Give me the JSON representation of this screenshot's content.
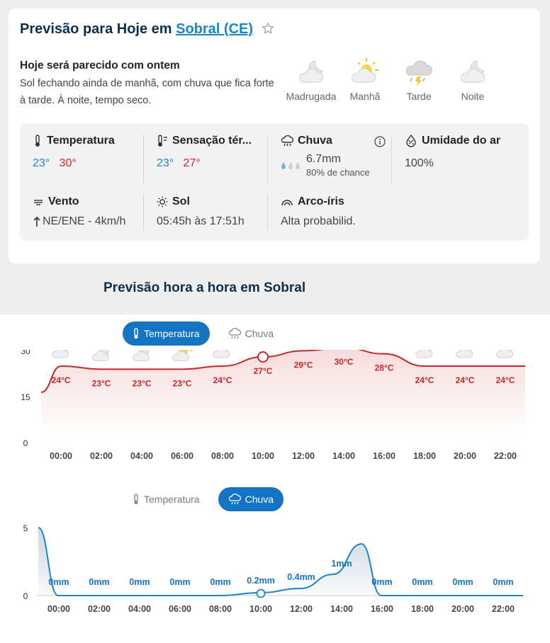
{
  "header": {
    "title_prefix": "Previsão para Hoje em",
    "city_link": "Sobral (CE)"
  },
  "summary": {
    "heading": "Hoje será parecido com ontem",
    "text": "Sol fechando ainda de manhã, com chuva que fica forte à tarde. À noite, tempo seco."
  },
  "periods": [
    {
      "label": "Madrugada",
      "icon": "moon-cloud-icon"
    },
    {
      "label": "Manhã",
      "icon": "sun-cloud-icon"
    },
    {
      "label": "Tarde",
      "icon": "storm-cloud-icon"
    },
    {
      "label": "Noite",
      "icon": "moon-cloud-icon"
    }
  ],
  "stats": {
    "temperature": {
      "label": "Temperatura",
      "min": "23°",
      "max": "30°"
    },
    "feels_like": {
      "label": "Sensação tér...",
      "min": "23°",
      "max": "27°"
    },
    "rain": {
      "label": "Chuva",
      "amount": "6.7mm",
      "chance": "80% de chance"
    },
    "humidity": {
      "label": "Umidade do ar",
      "value": "100%"
    },
    "wind": {
      "label": "Vento",
      "value": "NE/ENE - 4km/h"
    },
    "sun": {
      "label": "Sol",
      "value": "05:45h às 17:51h"
    },
    "rainbow": {
      "label": "Arco-íris",
      "value": "Alta probabilid."
    }
  },
  "hourly": {
    "title": "Previsão hora a hora em Sobral",
    "tab_temperature": "Temperatura",
    "tab_rain": "Chuva"
  },
  "colors": {
    "accent": "#1573c3",
    "temp_line": "#c62828",
    "rain_line": "#1a86c8",
    "title": "#0c2f4f"
  },
  "chart_data": [
    {
      "type": "line",
      "title": "",
      "x": [
        "00:00",
        "02:00",
        "04:00",
        "06:00",
        "08:00",
        "10:00",
        "12:00",
        "14:00",
        "16:00",
        "18:00",
        "20:00",
        "22:00"
      ],
      "values": [
        24,
        23,
        23,
        23,
        24,
        27,
        29,
        30,
        28,
        24,
        24,
        24
      ],
      "labels": [
        "24°C",
        "23°C",
        "23°C",
        "23°C",
        "24°C",
        "27°C",
        "29°C",
        "30°C",
        "28°C",
        "24°C",
        "24°C",
        "24°C"
      ],
      "icons": [
        "moon-cloud-icon",
        "moon-cloud-icon",
        "moon-cloud-icon",
        "sun-cloud-icon",
        "sun-cloud-icon",
        "sun-rain-icon",
        "sun-rain-icon",
        "sun-rain-icon",
        "sun-cloud-icon",
        "moon-cloud-icon",
        "moon-cloud-icon",
        "moon-cloud-icon"
      ],
      "yticks": [
        0,
        15,
        30
      ],
      "ylim": [
        0,
        35
      ],
      "selected": "10:00"
    },
    {
      "type": "area",
      "title": "",
      "x": [
        "00:00",
        "02:00",
        "04:00",
        "06:00",
        "08:00",
        "10:00",
        "12:00",
        "14:00",
        "16:00",
        "18:00",
        "20:00",
        "22:00"
      ],
      "values": [
        0,
        0,
        0,
        0,
        0,
        0.2,
        0.4,
        1,
        0,
        0,
        0,
        0
      ],
      "labels": [
        "0mm",
        "0mm",
        "0mm",
        "0mm",
        "0mm",
        "0.2mm",
        "0.4mm",
        "1mm",
        "0mm",
        "0mm",
        "0mm",
        "0mm"
      ],
      "yticks": [
        0,
        5
      ],
      "ylim": [
        0,
        5
      ],
      "selected": "10:00"
    }
  ]
}
